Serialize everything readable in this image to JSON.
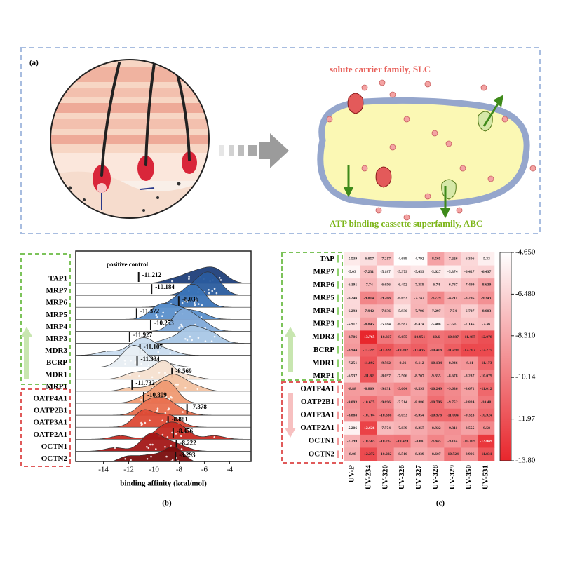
{
  "figure": {
    "panel_labels": [
      "(a)",
      "(b)",
      "(c)"
    ],
    "diagram": {
      "slc_label": "solute carrier family, SLC",
      "abc_label": "ATP binding cassette superfamily, ABC"
    }
  },
  "chart_data": [
    {
      "type": "ridgeline",
      "categories": [
        "TAP1",
        "MRP7",
        "MRP6",
        "MRP5",
        "MRP4",
        "MRP3",
        "MDR3",
        "BCRP",
        "MDR1",
        "MRP1",
        "OATP4A1",
        "OATP2B1",
        "OATP3A1",
        "OATP2A1",
        "OCTN1",
        "OCTN2"
      ],
      "annotation": "positive control",
      "positive_control": [
        -11.212,
        -10.184,
        -8.036,
        -11.372,
        -10.253,
        -11.927,
        -11.107,
        -11.334,
        -8.569,
        -11.732,
        -10.809,
        -7.378,
        -8.881,
        -8.476,
        -8.222,
        -8.293
      ],
      "xlabel": "binding affinity (kcal/mol)",
      "xlim": [
        -16.2,
        -2.3
      ],
      "xticks": [
        -14,
        -12,
        -10,
        -8,
        -6,
        -4
      ],
      "colors": [
        "#1f3f7a",
        "#2a5c9e",
        "#3b74b8",
        "#5a8fcb",
        "#7fa9d8",
        "#a9c7e6",
        "#c9dcef",
        "#e8eef3",
        "#f6e0d0",
        "#f3c3a2",
        "#ef9a72",
        "#e9704f",
        "#dd4a35",
        "#c52a22",
        "#a31717",
        "#7a0d0d"
      ]
    },
    {
      "type": "heatmap",
      "rows": [
        "TAP",
        "MRP7",
        "MRP6",
        "MRP5",
        "MRP4",
        "MRP3",
        "MDR3",
        "BCRP",
        "MDR1",
        "MRP1",
        "OATP4A1",
        "OATP2B1",
        "OATP3A1",
        "OATP2A1",
        "OCTN1",
        "OCTN2"
      ],
      "columns": [
        "UV-P",
        "UV-234",
        "UV-320",
        "UV-326",
        "UV-327",
        "UV-328",
        "UV-329",
        "UV-350",
        "UV-531"
      ],
      "values": [
        [
          -5.539,
          -6.057,
          -7.217,
          -4.689,
          -4.792,
          -8.565,
          -7.226,
          -6.306,
          -5.33
        ],
        [
          -5.03,
          -7.231,
          -5.187,
          -5.979,
          -5.659,
          -5.627,
          -5.374,
          -6.427,
          -6.497
        ],
        [
          -6.191,
          -7.74,
          -6.656,
          -6.452,
          -7.359,
          -6.74,
          -6.787,
          -7.499,
          -8.639
        ],
        [
          -6.246,
          -9.814,
          -9.268,
          -6.693,
          -7.747,
          -9.729,
          -8.211,
          -8.295,
          -9.343
        ],
        [
          -6.293,
          -7.942,
          -7.836,
          -5.936,
          -7.796,
          -7.297,
          -7.74,
          -6.727,
          -8.003
        ],
        [
          -5.917,
          -8.845,
          -5.184,
          -6.987,
          -6.474,
          -5.408,
          -7.507,
          -7.145,
          -7.36
        ],
        [
          -8.706,
          -13.765,
          -10.367,
          -9.655,
          -10.951,
          -10.6,
          -10.887,
          -11.487,
          -12.078
        ],
        [
          -8.944,
          -11.399,
          -11.828,
          -10.992,
          -11.435,
          -10.418,
          -11.499,
          -12.307,
          -12.275
        ],
        [
          -7.251,
          -11.892,
          -9.582,
          -9.01,
          -9.112,
          -10.134,
          -8.946,
          -9.11,
          -11.173
        ],
        [
          -6.537,
          -11.82,
          -8.097,
          -7.506,
          -8.707,
          -9.355,
          -8.678,
          -8.237,
          -10.079
        ],
        [
          -8.88,
          -8.809,
          -9.031,
          -9.604,
          -8.599,
          -10.249,
          -9.636,
          -8.671,
          -11.012
        ],
        [
          -9.093,
          -10.675,
          -9.696,
          -7.714,
          -8.886,
          -10.796,
          -9.752,
          -8.824,
          -10.48
        ],
        [
          -8.888,
          -10.704,
          -10.336,
          -8.093,
          -8.954,
          -10.978,
          -11.004,
          -9.323,
          -10.924
        ],
        [
          -5.206,
          -12.626,
          -7.574,
          -7.839,
          -8.257,
          -8.922,
          -9.311,
          -8.555,
          -9.58
        ],
        [
          -7.799,
          -10.565,
          -10.287,
          -10.429,
          -8.66,
          -9.845,
          -9.114,
          -10.109,
          -13.089
        ],
        [
          -8.08,
          -12.272,
          -10.222,
          -8.516,
          -8.239,
          -8.607,
          -10.524,
          -8.996,
          -11.831
        ]
      ],
      "colorbar": {
        "lim": [
          -13.8,
          -4.65
        ],
        "ticks": [
          {
            "value": -4.65,
            "label": "-4.650"
          },
          {
            "value": -6.48,
            "label": "-6.480"
          },
          {
            "value": -8.31,
            "label": "-8.310"
          },
          -10.14,
          -11.97,
          {
            "value": -13.8,
            "label": "-13.80"
          }
        ]
      },
      "colors": [
        "#ffffff",
        "#e8262c"
      ]
    }
  ]
}
